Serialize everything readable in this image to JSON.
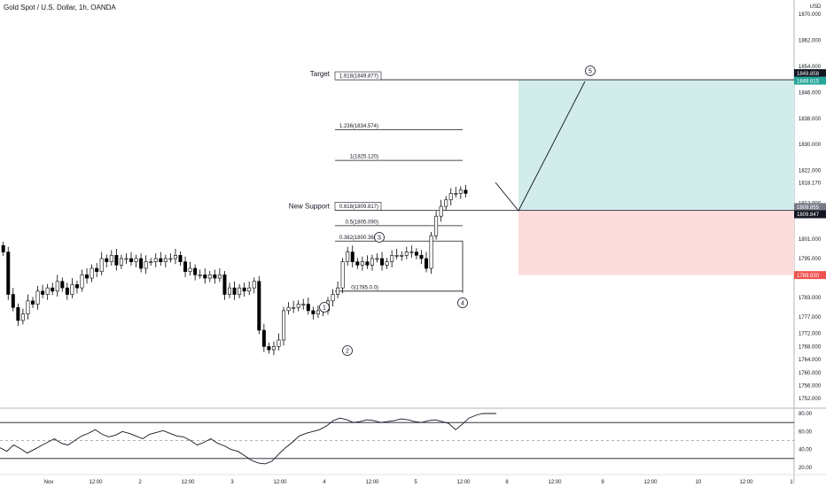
{
  "header": {
    "symbol_title": "Gold Spot / U.S. Dollar, 1h, OANDA",
    "currency": "USD"
  },
  "colors": {
    "bull_fill": "#ffffff",
    "bear_fill": "#000000",
    "candle_line": "#000000",
    "profit_zone": "#d2ece9",
    "loss_zone": "#fcdcdc",
    "target_badge": "#26a69a",
    "stop_badge": "#ef5350",
    "price_badge": "#131722"
  },
  "annotations": {
    "target_label": "Target",
    "new_support_label": "New Support",
    "fib_levels": [
      {
        "text": "1.618(1849.877)",
        "boxed": true
      },
      {
        "text": "1.236(1834.574)",
        "boxed": false
      },
      {
        "text": "1(1825.120)",
        "boxed": false
      },
      {
        "text": "0.618(1809.817)",
        "boxed": true
      },
      {
        "text": "0.5(1805.090)",
        "boxed": false
      },
      {
        "text": "0.382(1800.363)",
        "boxed": false
      },
      {
        "text": "0(1785.0.0)",
        "boxed": false
      }
    ],
    "waves": [
      "1",
      "2",
      "3",
      "4",
      "5"
    ]
  },
  "badges": {
    "top_dark": "1849.858",
    "target": "1849.815",
    "mid": "1818.170",
    "gray": "1809.855",
    "support": "1809.847",
    "stop": "1789.930"
  },
  "chart_data": {
    "type": "candlestick",
    "title": "Gold Spot / U.S. Dollar, 1h, OANDA",
    "y_axis": {
      "unit": "USD",
      "range": [
        1752,
        1870
      ],
      "ticks": [
        "1870.000",
        "1862.000",
        "1854.000",
        "1846.000",
        "1838.000",
        "1830.000",
        "1822.000",
        "1818.170",
        "1812.000",
        "1801.000",
        "1795.000",
        "1783.000",
        "1777.000",
        "1772.000",
        "1768.000",
        "1764.000",
        "1760.000",
        "1756.000",
        "1752.000"
      ]
    },
    "x_axis": {
      "ticks": [
        "Nov",
        "12:00",
        "2",
        "12:00",
        "3",
        "12:00",
        "4",
        "12:00",
        "5",
        "12:00",
        "8",
        "12:00",
        "9",
        "12:00",
        "10",
        "12:00",
        "1"
      ]
    },
    "series_close": [
      1797,
      1784,
      1780,
      1776,
      1778,
      1782,
      1781,
      1785,
      1784,
      1786,
      1785,
      1788,
      1786,
      1784,
      1787,
      1786,
      1790,
      1789,
      1792,
      1791,
      1795,
      1794,
      1796,
      1793,
      1795,
      1795,
      1794,
      1795,
      1792,
      1794,
      1794,
      1795,
      1794,
      1795,
      1795,
      1796,
      1794,
      1791,
      1792,
      1790,
      1790,
      1789,
      1790,
      1789,
      1790,
      1784,
      1786,
      1784,
      1786,
      1785,
      1786,
      1788,
      1773,
      1768,
      1767,
      1768,
      1770,
      1779,
      1780,
      1780,
      1781,
      1781,
      1779,
      1778,
      1779,
      1779,
      1782,
      1784,
      1786,
      1794,
      1797,
      1794,
      1793,
      1794,
      1793,
      1795,
      1795,
      1793,
      1794,
      1796,
      1796,
      1796,
      1797,
      1797,
      1796,
      1795,
      1792,
      1802,
      1808,
      1811,
      1813,
      1815,
      1815,
      1816,
      1815
    ],
    "trade_setup": {
      "entry": 1809.85,
      "target": 1849.815,
      "stop": 1789.93
    },
    "oscillator": {
      "range": [
        20,
        80
      ],
      "ticks": [
        "80.00",
        "60.00",
        "40.00",
        "20.00"
      ],
      "levels": [
        30,
        70
      ]
    }
  }
}
